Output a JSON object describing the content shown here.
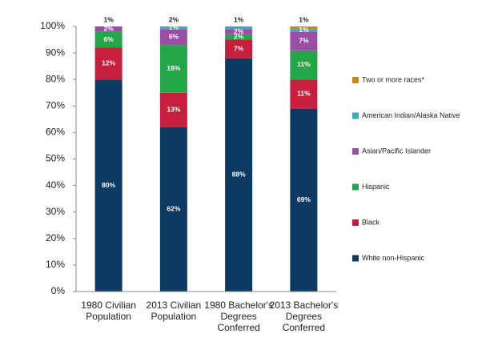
{
  "chart_data": {
    "type": "stacked-bar",
    "categories": [
      [
        "1980 Civilian",
        "Population"
      ],
      [
        "2013 Civilian",
        "Population"
      ],
      [
        "1980 Bachelor's",
        "Degrees",
        "Conferred"
      ],
      [
        "2013 Bachelor's",
        "Degrees",
        "Conferred"
      ]
    ],
    "series": [
      {
        "name": "White non-Hispanic",
        "color": "#0c3a62",
        "values": [
          80,
          62,
          88,
          69
        ],
        "value_labels": [
          "80%",
          "62%",
          "88%",
          "69%"
        ]
      },
      {
        "name": "Black",
        "color": "#c61f3e",
        "values": [
          12,
          13,
          7,
          11
        ],
        "value_labels": [
          "12%",
          "13%",
          "7%",
          "11%"
        ]
      },
      {
        "name": "Hispanic",
        "color": "#23a548",
        "values": [
          6,
          18,
          2,
          11
        ],
        "value_labels": [
          "6%",
          "18%",
          "2%",
          "11%"
        ]
      },
      {
        "name": "Asian/Pacific Islander",
        "color": "#9a4ea6",
        "values": [
          2,
          6,
          2,
          7
        ],
        "value_labels": [
          "2%",
          "6%",
          "2%",
          "7%"
        ]
      },
      {
        "name": "American Indian/Alaska Native",
        "color": "#3aa8bf",
        "values": [
          1,
          1,
          1,
          1
        ],
        "value_labels": [
          "1%",
          "1%",
          "1%",
          "1%"
        ]
      },
      {
        "name": "Two or more races*",
        "color": "#c7861b",
        "values": [
          null,
          2,
          null,
          1
        ],
        "value_labels": [
          null,
          "2%",
          null,
          "1%"
        ]
      }
    ],
    "ylim": [
      0,
      100
    ],
    "yticks": [
      {
        "value": 0,
        "label": "0%"
      },
      {
        "value": 10,
        "label": "10%"
      },
      {
        "value": 20,
        "label": "20%"
      },
      {
        "value": 30,
        "label": "30%"
      },
      {
        "value": 40,
        "label": "40%"
      },
      {
        "value": 50,
        "label": "50%"
      },
      {
        "value": 60,
        "label": "60%"
      },
      {
        "value": 70,
        "label": "70%"
      },
      {
        "value": 80,
        "label": "80%"
      },
      {
        "value": 90,
        "label": "90%"
      },
      {
        "value": 100,
        "label": "100%"
      }
    ]
  }
}
